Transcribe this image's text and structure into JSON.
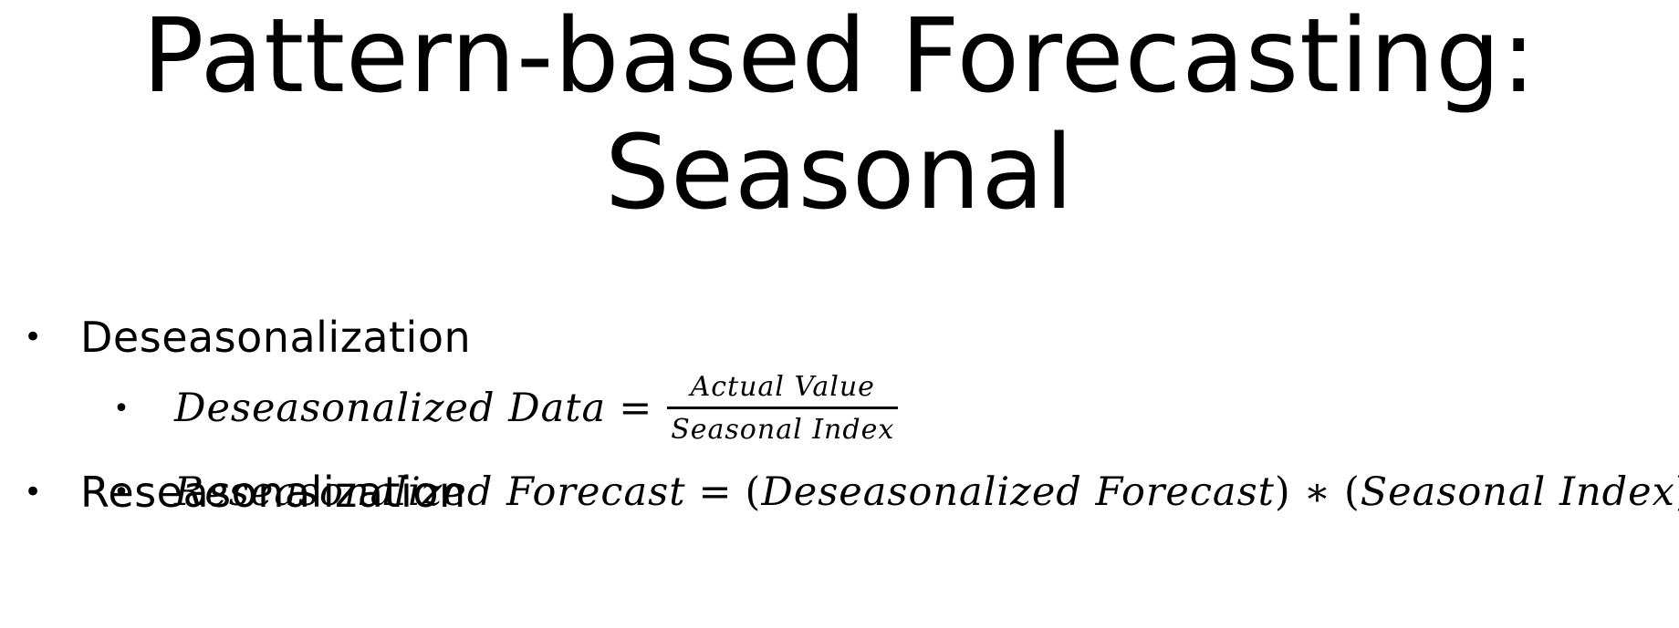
{
  "slide": {
    "title_line1": "Pattern-based Forecasting:",
    "title_line2": "Seasonal",
    "bullets": [
      {
        "label": "Deseasonalization",
        "formula": {
          "lhs": "Deseasonalized Data",
          "equals": "=",
          "numerator": "Actual Value",
          "denominator": "Seasonal Index"
        }
      },
      {
        "label": "Reseasonalization",
        "formula": {
          "lhs": "Reseasonalized Forecast",
          "equals": "=",
          "term1": "Deseasonalized Forecast",
          "operator": "∗",
          "term2": "Seasonal Index",
          "open_paren": "(",
          "close_paren": ")"
        }
      }
    ],
    "bullet_char": "•"
  }
}
